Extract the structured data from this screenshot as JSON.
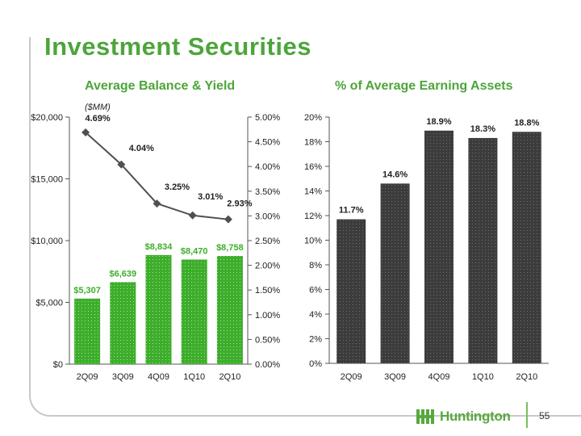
{
  "slide": {
    "title": "Investment Securities",
    "page_number": "55",
    "logo_text": "Huntington"
  },
  "colors": {
    "accent_green": "#4da53a",
    "bar_green": "#3dae2b",
    "bar_dark": "#3c3c3c",
    "line": "#505050"
  },
  "chart_data": [
    {
      "type": "bar",
      "title": "Average Balance & Yield",
      "unit_label": "($MM)",
      "categories": [
        "2Q09",
        "3Q09",
        "4Q09",
        "1Q10",
        "2Q10"
      ],
      "series": [
        {
          "values": [
            5307,
            6639,
            8834,
            8470,
            8758
          ],
          "labels": [
            "$5,307",
            "$6,639",
            "$8,834",
            "$8,470",
            "$8,758"
          ]
        }
      ],
      "line_series": {
        "values": [
          4.69,
          4.04,
          3.25,
          3.01,
          2.93
        ],
        "labels": [
          "4.69%",
          "4.04%",
          "3.25%",
          "3.01%",
          "2.93%"
        ]
      },
      "ylim": [
        0,
        20000
      ],
      "y_ticks": [
        "$0",
        "$5,000",
        "$10,000",
        "$15,000",
        "$20,000"
      ],
      "y2lim": [
        0,
        5
      ],
      "y2_ticks": [
        "0.00%",
        "0.50%",
        "1.00%",
        "1.50%",
        "2.00%",
        "2.50%",
        "3.00%",
        "3.50%",
        "4.00%",
        "4.50%",
        "5.00%"
      ]
    },
    {
      "type": "bar",
      "title": "% of Average Earning Assets",
      "categories": [
        "2Q09",
        "3Q09",
        "4Q09",
        "1Q10",
        "2Q10"
      ],
      "series": [
        {
          "values": [
            11.7,
            14.6,
            18.9,
            18.3,
            18.8
          ],
          "labels": [
            "11.7%",
            "14.6%",
            "18.9%",
            "18.3%",
            "18.8%"
          ]
        }
      ],
      "ylim": [
        0,
        20
      ],
      "y_ticks": [
        "0%",
        "2%",
        "4%",
        "6%",
        "8%",
        "10%",
        "12%",
        "14%",
        "16%",
        "18%",
        "20%"
      ]
    }
  ]
}
